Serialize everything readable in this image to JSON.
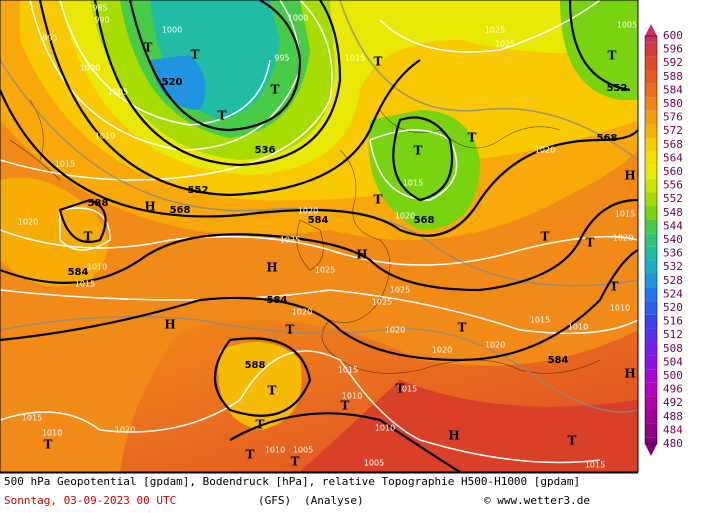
{
  "footer": {
    "title": "500 hPa Geopotential [gpdam], Bodendruck [hPa], relative Topographie H500-H1000 [gpdam]",
    "date": "Sonntag, 03-09-2023  00 UTC",
    "model": "(GFS)",
    "run": "(Analyse)",
    "credit": "© www.wetter3.de"
  },
  "colorbar": {
    "ticks": [
      600,
      596,
      592,
      588,
      584,
      580,
      576,
      572,
      568,
      564,
      560,
      556,
      552,
      548,
      544,
      540,
      536,
      532,
      528,
      524,
      520,
      516,
      512,
      508,
      504,
      500,
      496,
      492,
      488,
      484,
      480
    ],
    "colors": [
      "#c83060",
      "#d83838",
      "#e04828",
      "#e85820",
      "#ee6c1c",
      "#f48414",
      "#f89c08",
      "#f8b400",
      "#f8cc00",
      "#f4e000",
      "#e4ec00",
      "#c8e400",
      "#a4dc00",
      "#78d410",
      "#48cc48",
      "#30c478",
      "#20bca4",
      "#20acc8",
      "#2094e0",
      "#2078f0",
      "#2860f0",
      "#3c40f0",
      "#5830f0",
      "#7420ec",
      "#9010e4",
      "#a808d4",
      "#b800c0",
      "#b000a8",
      "#a00098",
      "#900088",
      "#800078"
    ]
  },
  "isobar_labels": [
    "985",
    "990",
    "995",
    "1000",
    "1000",
    "1005",
    "1010",
    "1015",
    "1020",
    "1015",
    "1010",
    "1000",
    "995",
    "1015",
    "1025",
    "1025",
    "1020",
    "1015",
    "1020",
    "1020",
    "1025",
    "1025",
    "1025",
    "1025",
    "1020",
    "1020",
    "1020",
    "1020",
    "1015",
    "1010",
    "1010",
    "1015",
    "1010",
    "1015",
    "1010",
    "1005",
    "1010",
    "1005",
    "1015",
    "1010",
    "1020",
    "1015",
    "1005",
    "1015",
    "1020"
  ],
  "geopotential_labels": [
    "520",
    "536",
    "552",
    "568",
    "584",
    "588",
    "584",
    "584",
    "588",
    "568",
    "568",
    "552",
    "584"
  ],
  "pressure_centers": [
    "H",
    "H",
    "H",
    "H",
    "H",
    "H",
    "H",
    "T",
    "T",
    "T",
    "T",
    "T",
    "T",
    "T",
    "T",
    "T",
    "T",
    "T",
    "T",
    "T",
    "T",
    "T",
    "T",
    "T",
    "T",
    "T",
    "T",
    "T",
    "T",
    "T"
  ]
}
